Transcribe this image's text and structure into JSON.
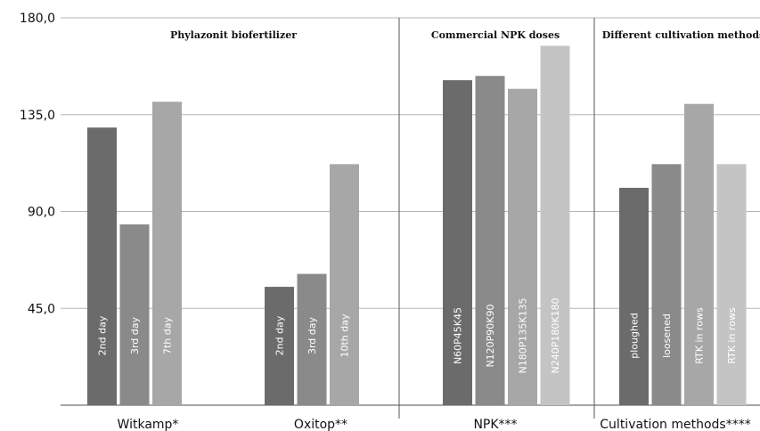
{
  "chart_data": {
    "type": "bar",
    "title": "",
    "xlabel": "",
    "ylabel": "",
    "ylim": [
      0,
      180
    ],
    "yticks": [
      "45,0",
      "90,0",
      "135,0",
      "180,0"
    ],
    "grid": true,
    "groups": [
      {
        "category": "Witkamp*",
        "section": "Phylazonit biofertilizer",
        "bars": [
          {
            "label": "2nd day",
            "value": 129,
            "color": "#6b6b6b"
          },
          {
            "label": "3rd day",
            "value": 84,
            "color": "#8a8a8a"
          },
          {
            "label": "7th day",
            "value": 141,
            "color": "#a7a7a7"
          }
        ]
      },
      {
        "category": "Oxitop**",
        "section": "Phylazonit biofertilizer",
        "bars": [
          {
            "label": "2nd day",
            "value": 55,
            "color": "#6b6b6b"
          },
          {
            "label": "3rd day",
            "value": 61,
            "color": "#8a8a8a"
          },
          {
            "label": "10th day",
            "value": 112,
            "color": "#a7a7a7"
          }
        ]
      },
      {
        "category": "NPK***",
        "section": "Commercial NPK doses",
        "bars": [
          {
            "label": "N60P45K45",
            "value": 151,
            "color": "#6b6b6b"
          },
          {
            "label": "N120P90K90",
            "value": 153,
            "color": "#8a8a8a"
          },
          {
            "label": "N180P135K135",
            "value": 147,
            "color": "#a7a7a7"
          },
          {
            "label": "N240P180K180",
            "value": 167,
            "color": "#c4c4c4"
          }
        ]
      },
      {
        "category": "Cultivation methods****",
        "section": "Different cultivation methods",
        "bars": [
          {
            "label": "ploughed",
            "value": 101,
            "color": "#6b6b6b"
          },
          {
            "label": "loosened",
            "value": 112,
            "color": "#8a8a8a"
          },
          {
            "label": "RTK in rows",
            "value": 140,
            "color": "#a7a7a7"
          },
          {
            "label": "RTK in rows",
            "value": 112,
            "color": "#c4c4c4"
          }
        ]
      }
    ],
    "sections": [
      "Phylazonit biofertilizer",
      "Commercial NPK doses",
      "Different cultivation methods"
    ]
  }
}
